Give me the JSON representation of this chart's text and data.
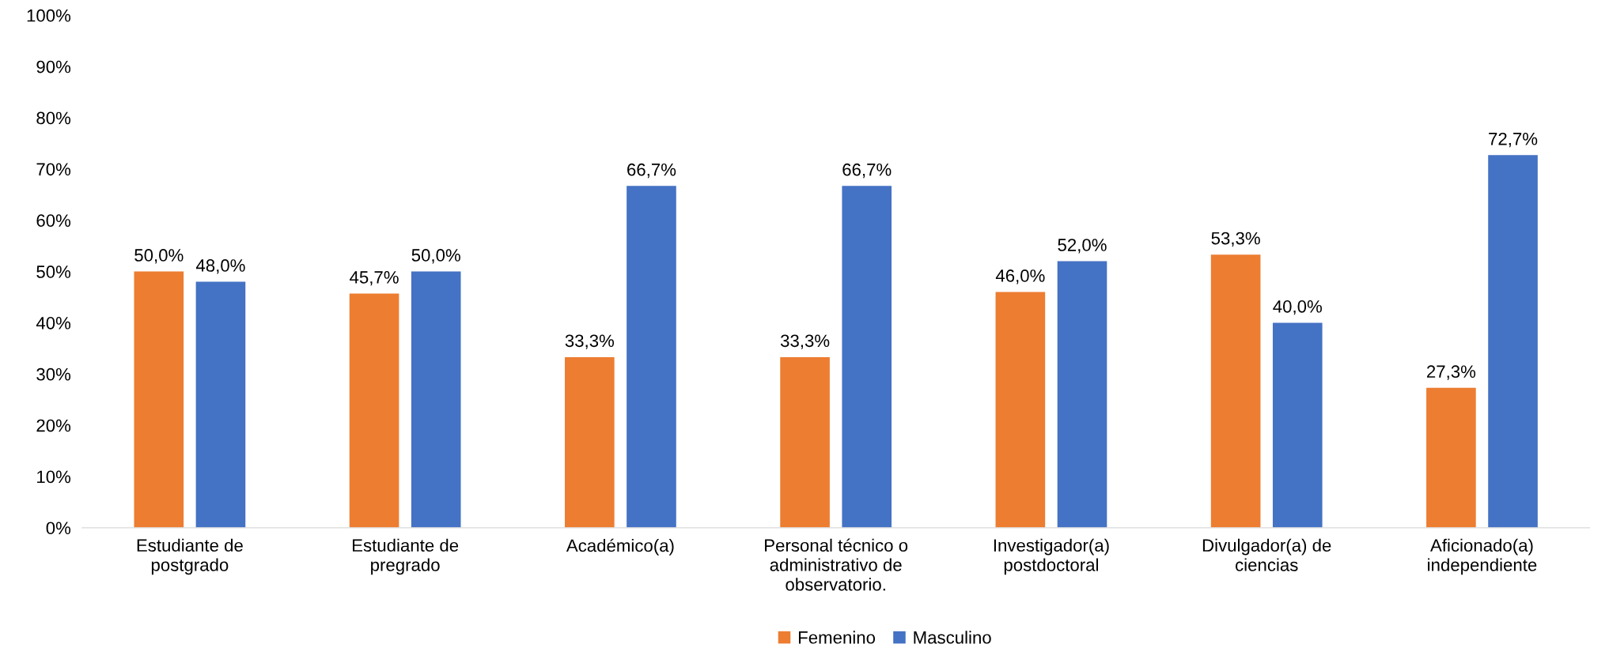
{
  "chart_data": {
    "type": "bar",
    "categories": [
      "Estudiante de\npostgrado",
      "Estudiante de\npregrado",
      "Académico(a)",
      "Personal técnico o\nadministrativo de\nobservatorio.",
      "Investigador(a)\npostdoctoral",
      "Divulgador(a) de\nciencias",
      "Aficionado(a)\nindependiente"
    ],
    "series": [
      {
        "name": "Femenino",
        "color": "#ed7d31",
        "values": [
          50.0,
          45.7,
          33.3,
          33.3,
          46.0,
          53.3,
          27.3
        ],
        "value_labels": [
          "50,0%",
          "45,7%",
          "33,3%",
          "33,3%",
          "46,0%",
          "53,3%",
          "27,3%"
        ]
      },
      {
        "name": "Masculino",
        "color": "#4472c4",
        "values": [
          48.0,
          50.0,
          66.7,
          66.7,
          52.0,
          40.0,
          72.7
        ],
        "value_labels": [
          "48,0%",
          "50,0%",
          "66,7%",
          "66,7%",
          "52,0%",
          "40,0%",
          "72,7%"
        ]
      }
    ],
    "ylim": [
      0,
      100
    ],
    "yticks": [
      {
        "value": 0,
        "label": "0%"
      },
      {
        "value": 10,
        "label": "10%"
      },
      {
        "value": 20,
        "label": "20%"
      },
      {
        "value": 30,
        "label": "30%"
      },
      {
        "value": 40,
        "label": "40%"
      },
      {
        "value": 50,
        "label": "50%"
      },
      {
        "value": 60,
        "label": "60%"
      },
      {
        "value": 70,
        "label": "70%"
      },
      {
        "value": 80,
        "label": "80%"
      },
      {
        "value": 90,
        "label": "90%"
      },
      {
        "value": 100,
        "label": "100%"
      }
    ],
    "grid": false,
    "legend": "bottom"
  }
}
